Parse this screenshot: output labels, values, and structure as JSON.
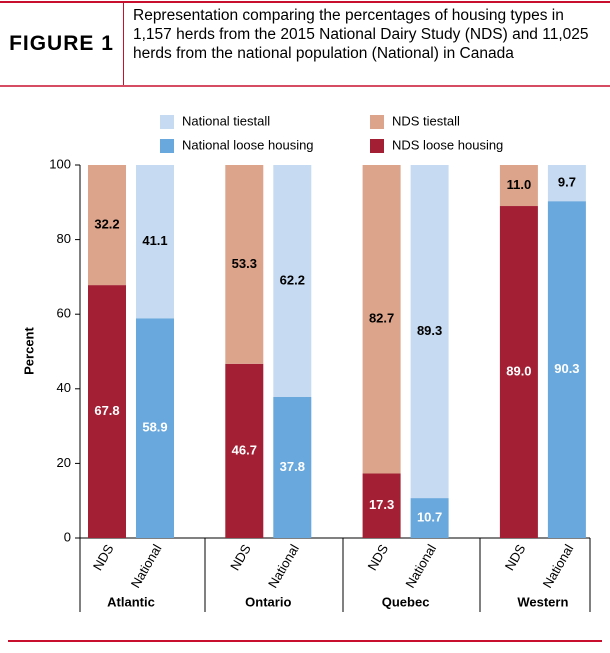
{
  "figure_label": "FIGURE 1",
  "chart_data": {
    "type": "stacked-bar",
    "title": "Representation comparing the percentages of housing types in 1,157 herds from the 2015 National Dairy Study (NDS) and 11,025 herds from the national population (National) in Canada",
    "y_label": "Percent",
    "categories": [
      "Atlantic",
      "Ontario",
      "Quebec",
      "Western"
    ],
    "ylim": [
      0,
      100
    ],
    "yticks": [
      0,
      20,
      40,
      60,
      80,
      100
    ],
    "grid": false,
    "bars": [
      {
        "label": "NDS",
        "series": [
          {
            "name": "NDS loose housing",
            "color": "#a31f34",
            "label_color": "#ffffff",
            "values": [
              67.8,
              46.7,
              17.3,
              89.0
            ],
            "value_labels": [
              "67.8",
              "46.7",
              "17.3",
              "89.0"
            ]
          },
          {
            "name": "NDS tiestall",
            "color": "#dca48b",
            "label_color": "#000000",
            "values": [
              32.2,
              53.3,
              82.7,
              11.0
            ],
            "value_labels": [
              "32.2",
              "53.3",
              "82.7",
              "11.0"
            ]
          }
        ]
      },
      {
        "label": "National",
        "series": [
          {
            "name": "National loose housing",
            "color": "#69a8dc",
            "label_color": "#ffffff",
            "values": [
              58.9,
              37.8,
              10.7,
              90.3
            ],
            "value_labels": [
              "58.9",
              "37.8",
              "10.7",
              "90.3"
            ]
          },
          {
            "name": "National tiestall",
            "color": "#c6daf2",
            "label_color": "#000000",
            "values": [
              41.1,
              62.2,
              89.3,
              9.7
            ],
            "value_labels": [
              "41.1",
              "62.2",
              "89.3",
              "9.7"
            ]
          }
        ]
      }
    ]
  }
}
